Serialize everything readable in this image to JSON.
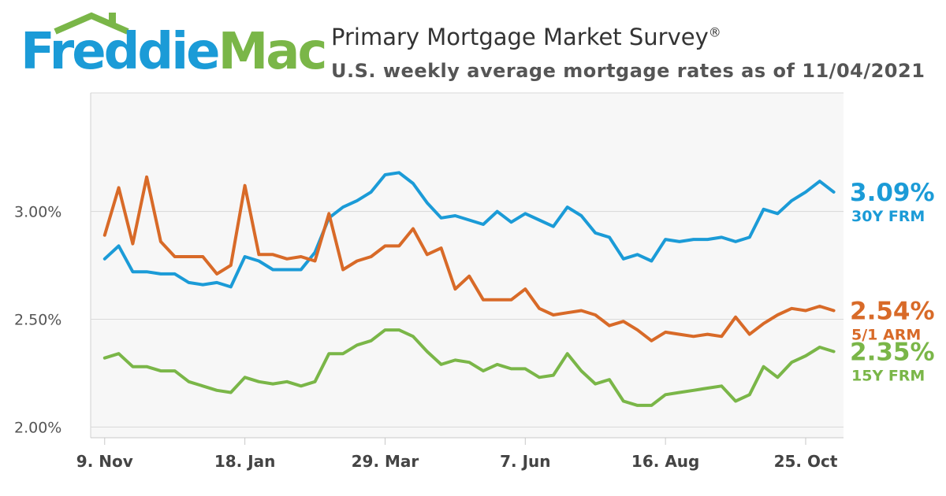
{
  "logo": {
    "freddie": "Freddie",
    "mac": "Mac"
  },
  "header": {
    "title": "Primary Mortgage Market Survey",
    "registered": "®",
    "subtitle": "U.S. weekly average mortgage rates as of 11/04/2021"
  },
  "colors": {
    "frm30": "#1b9bd7",
    "arm51": "#d86a28",
    "frm15": "#7ab648",
    "grid": "#d9d9d9",
    "plot_bg": "#f7f7f7"
  },
  "chart_data": {
    "type": "line",
    "title": "Primary Mortgage Market Survey",
    "subtitle": "U.S. weekly average mortgage rates as of 11/04/2021",
    "xlabel": "",
    "ylabel": "",
    "ylim": [
      1.95,
      3.55
    ],
    "yticks": [
      2.0,
      2.5,
      3.0
    ],
    "ytick_labels": [
      "2.00%",
      "2.50%",
      "3.00%"
    ],
    "x_range": [
      -1,
      52.7
    ],
    "xtick_index": [
      0,
      10,
      20,
      30,
      40,
      50
    ],
    "xtick_labels": [
      "9. Nov",
      "18. Jan",
      "29. Mar",
      "7. Jun",
      "16. Aug",
      "25. Oct"
    ],
    "series": [
      {
        "name": "30Y FRM",
        "end_label": "3.09%",
        "color": "#1b9bd7",
        "values": [
          2.78,
          2.84,
          2.72,
          2.72,
          2.71,
          2.71,
          2.67,
          2.66,
          2.67,
          2.65,
          2.79,
          2.77,
          2.73,
          2.73,
          2.73,
          2.81,
          2.97,
          3.02,
          3.05,
          3.09,
          3.17,
          3.18,
          3.13,
          3.04,
          2.97,
          2.98,
          2.96,
          2.94,
          3.0,
          2.95,
          2.99,
          2.96,
          2.93,
          3.02,
          2.98,
          2.9,
          2.88,
          2.78,
          2.8,
          2.77,
          2.87,
          2.86,
          2.87,
          2.87,
          2.88,
          2.86,
          2.88,
          3.01,
          2.99,
          3.05,
          3.09,
          3.14,
          3.09
        ]
      },
      {
        "name": "5/1 ARM",
        "end_label": "2.54%",
        "color": "#d86a28",
        "values": [
          2.89,
          3.11,
          2.85,
          3.16,
          2.86,
          2.79,
          2.79,
          2.79,
          2.71,
          2.75,
          3.12,
          2.8,
          2.8,
          2.78,
          2.79,
          2.77,
          2.99,
          2.73,
          2.77,
          2.79,
          2.84,
          2.84,
          2.92,
          2.8,
          2.83,
          2.64,
          2.7,
          2.59,
          2.59,
          2.59,
          2.64,
          2.55,
          2.52,
          2.53,
          2.54,
          2.52,
          2.47,
          2.49,
          2.45,
          2.4,
          2.44,
          2.43,
          2.42,
          2.43,
          2.42,
          2.51,
          2.43,
          2.48,
          2.52,
          2.55,
          2.54,
          2.56,
          2.54
        ]
      },
      {
        "name": "15Y FRM",
        "end_label": "2.35%",
        "color": "#7ab648",
        "values": [
          2.32,
          2.34,
          2.28,
          2.28,
          2.26,
          2.26,
          2.21,
          2.19,
          2.17,
          2.16,
          2.23,
          2.21,
          2.2,
          2.21,
          2.19,
          2.21,
          2.34,
          2.34,
          2.38,
          2.4,
          2.45,
          2.45,
          2.42,
          2.35,
          2.29,
          2.31,
          2.3,
          2.26,
          2.29,
          2.27,
          2.27,
          2.23,
          2.24,
          2.34,
          2.26,
          2.2,
          2.22,
          2.12,
          2.1,
          2.1,
          2.15,
          2.16,
          2.17,
          2.18,
          2.19,
          2.12,
          2.15,
          2.28,
          2.23,
          2.3,
          2.33,
          2.37,
          2.35
        ]
      }
    ]
  }
}
